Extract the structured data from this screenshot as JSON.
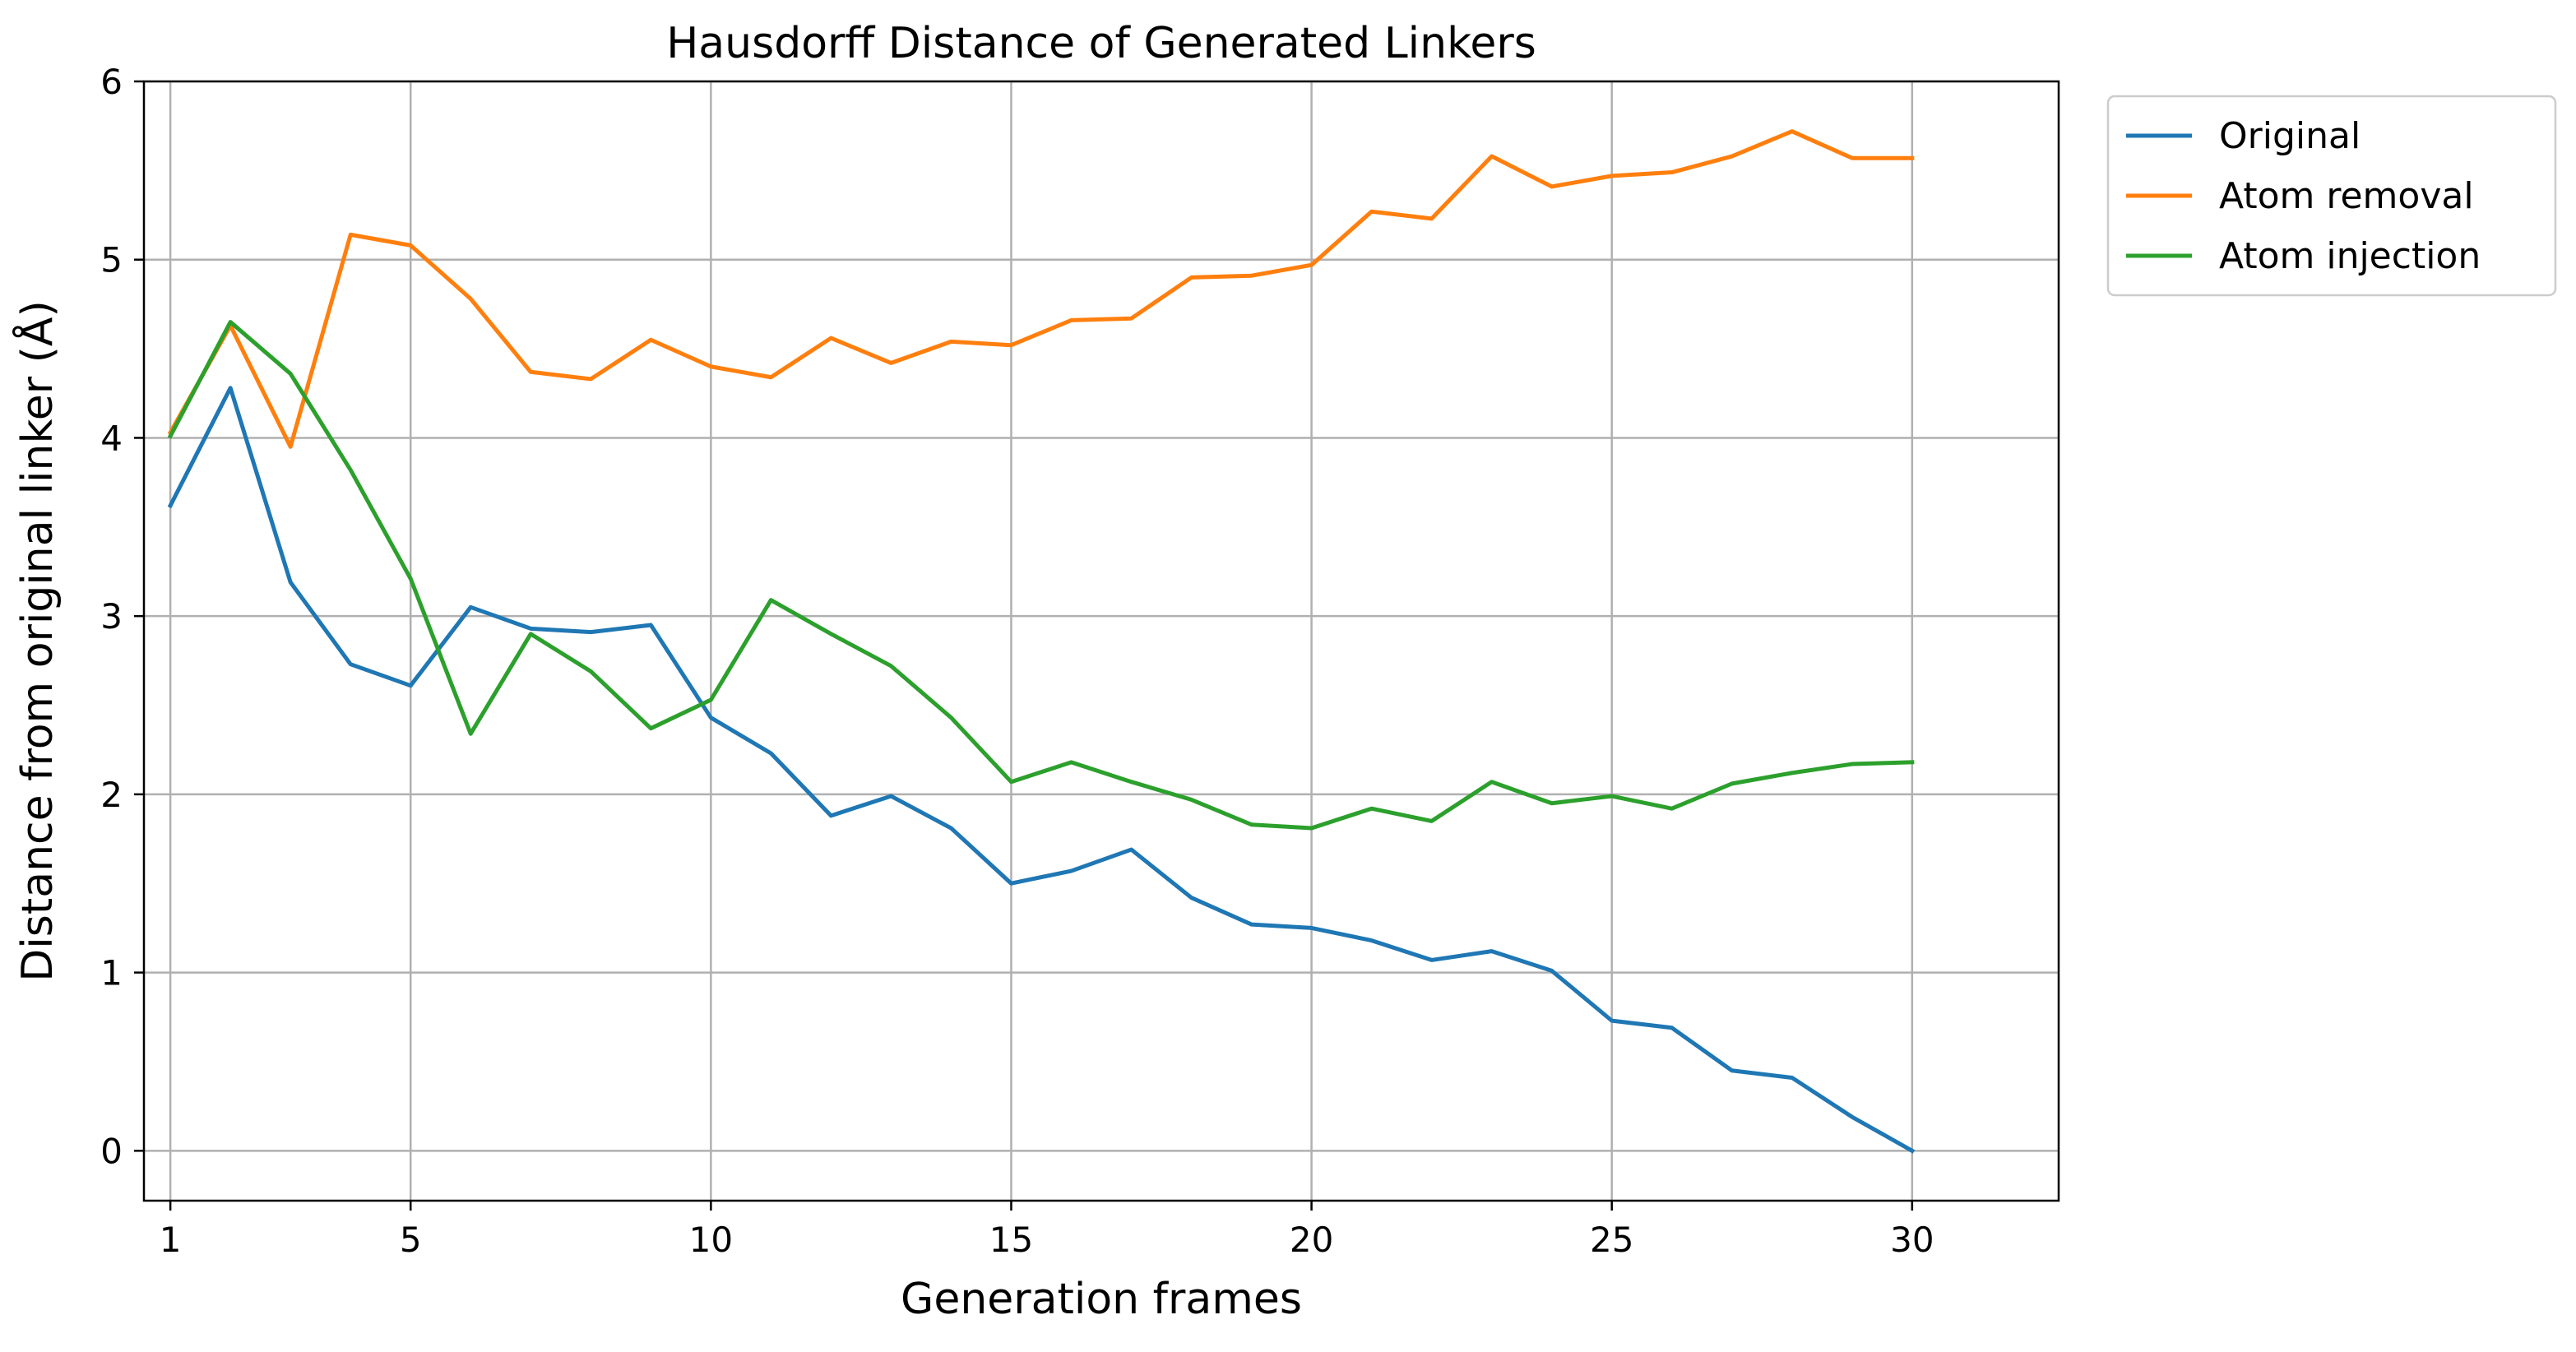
{
  "chart_data": {
    "type": "line",
    "title": "Hausdorff Distance of Generated Linkers",
    "xlabel": "Generation frames",
    "ylabel": "Distance from original linker (Å)",
    "xlim": [
      -0.44,
      31.44
    ],
    "ylim": [
      -0.28,
      6.0
    ],
    "x_ticks": [
      1,
      5,
      10,
      15,
      20,
      25,
      30
    ],
    "y_ticks": [
      0,
      1,
      2,
      3,
      4,
      5,
      6
    ],
    "grid": true,
    "legend_position": "outside-top-right",
    "x": [
      0,
      1,
      2,
      3,
      4,
      5,
      6,
      7,
      8,
      9,
      10,
      11,
      12,
      13,
      14,
      15,
      16,
      17,
      18,
      19,
      20,
      21,
      22,
      23,
      24,
      25,
      26,
      27,
      28,
      29
    ],
    "series": [
      {
        "name": "Original",
        "color": "#1f77b4",
        "values": [
          3.62,
          4.28,
          3.19,
          2.73,
          2.61,
          3.05,
          2.93,
          2.91,
          2.95,
          2.43,
          2.23,
          1.88,
          1.99,
          1.81,
          1.5,
          1.57,
          1.69,
          1.42,
          1.27,
          1.25,
          1.18,
          1.07,
          1.12,
          1.01,
          0.73,
          0.69,
          0.45,
          0.41,
          0.19,
          0.0
        ]
      },
      {
        "name": "Atom removal",
        "color": "#ff7f0e",
        "values": [
          4.03,
          4.63,
          3.95,
          5.14,
          5.08,
          4.78,
          4.37,
          4.33,
          4.55,
          4.4,
          4.34,
          4.56,
          4.42,
          4.54,
          4.52,
          4.66,
          4.67,
          4.9,
          4.91,
          4.97,
          5.27,
          5.23,
          5.58,
          5.41,
          5.47,
          5.49,
          5.58,
          5.72,
          5.57,
          5.57
        ]
      },
      {
        "name": "Atom injection",
        "color": "#2ca02c",
        "values": [
          4.01,
          4.65,
          4.36,
          3.82,
          3.21,
          2.34,
          2.9,
          2.69,
          2.37,
          2.53,
          3.09,
          2.9,
          2.72,
          2.43,
          2.07,
          2.18,
          2.07,
          1.97,
          1.83,
          1.81,
          1.92,
          1.85,
          2.07,
          1.95,
          1.99,
          1.92,
          2.06,
          2.12,
          2.17,
          2.18
        ]
      }
    ]
  }
}
